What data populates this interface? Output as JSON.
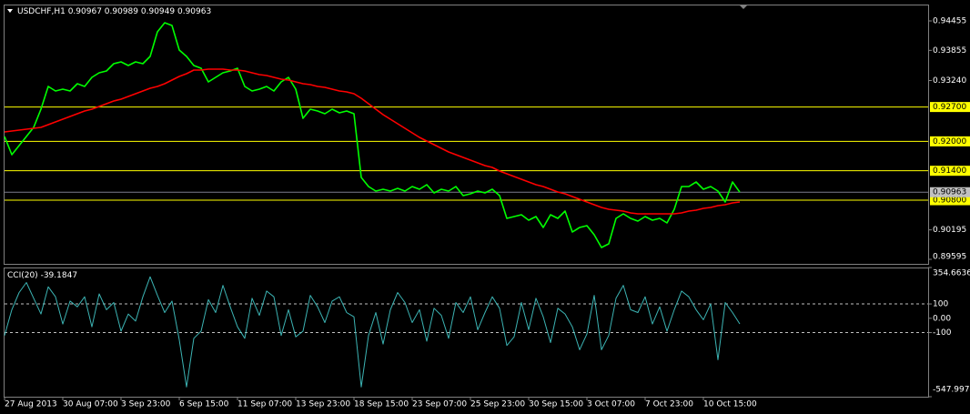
{
  "chart_data": [
    {
      "type": "line",
      "symbol": "USDCHF,H1",
      "ohlc": [
        0.90967,
        0.90989,
        0.90949,
        0.90963
      ],
      "ylim": [
        0.89502,
        0.94789
      ],
      "yticks": [
        0.94455,
        0.93855,
        {
          "value": 0.9324,
          "label": "0.93240"
        },
        0.90195,
        0.89595
      ],
      "levels": [
        {
          "value": 0.927,
          "label": "0.92700"
        },
        {
          "value": 0.92,
          "label": "0.92000"
        },
        {
          "value": 0.914,
          "label": "0.91400"
        },
        {
          "value": 0.908,
          "label": "0.90800"
        }
      ],
      "level_color": "#ffff00",
      "last_price": 0.90963,
      "series": [
        {
          "color": "#00ff00",
          "values": [
            0.92099,
            0.91728,
            0.91914,
            0.92099,
            0.92285,
            0.92656,
            0.93119,
            0.93027,
            0.93064,
            0.93027,
            0.93175,
            0.93119,
            0.93305,
            0.93398,
            0.93435,
            0.93583,
            0.9362,
            0.93546,
            0.9362,
            0.93583,
            0.93732,
            0.94232,
            0.94418,
            0.94362,
            0.93861,
            0.93732,
            0.93546,
            0.9349,
            0.93212,
            0.93305,
            0.93398,
            0.93435,
            0.9349,
            0.93119,
            0.93027,
            0.93064,
            0.93119,
            0.93027,
            0.93212,
            0.93305,
            0.93064,
            0.9247,
            0.92656,
            0.92619,
            0.92563,
            0.92656,
            0.92581,
            0.92619,
            0.92563,
            0.91264,
            0.91079,
            0.90986,
            0.91023,
            0.90986,
            0.91042,
            0.90986,
            0.91079,
            0.91023,
            0.91116,
            0.90949,
            0.91023,
            0.90986,
            0.91079,
            0.90893,
            0.9093,
            0.90986,
            0.90949,
            0.91023,
            0.90893,
            0.9043,
            0.90467,
            0.90504,
            0.90393,
            0.90467,
            0.90244,
            0.90504,
            0.9043,
            0.90578,
            0.90151,
            0.90244,
            0.90281,
            0.90096,
            0.89836,
            0.8991,
            0.9043,
            0.90522,
            0.9043,
            0.90374,
            0.90467,
            0.90393,
            0.9043,
            0.90337,
            0.90615,
            0.91079,
            0.91079,
            0.91172,
            0.91023,
            0.91079,
            0.90986,
            0.90764,
            0.91172,
            0.90963
          ]
        },
        {
          "color": "#ff0000",
          "values": [
            0.92192,
            0.9221,
            0.92229,
            0.92248,
            0.92266,
            0.92285,
            0.9234,
            0.92396,
            0.92452,
            0.92507,
            0.92563,
            0.92619,
            0.92656,
            0.92711,
            0.92767,
            0.92823,
            0.9286,
            0.92915,
            0.92971,
            0.93027,
            0.93082,
            0.93119,
            0.93175,
            0.93249,
            0.93323,
            0.93379,
            0.93453,
            0.93453,
            0.93472,
            0.93472,
            0.93472,
            0.93453,
            0.93453,
            0.93435,
            0.93398,
            0.93361,
            0.93342,
            0.93305,
            0.93268,
            0.93249,
            0.93212,
            0.93175,
            0.93156,
            0.93119,
            0.93101,
            0.93064,
            0.93027,
            0.93008,
            0.92971,
            0.92878,
            0.92767,
            0.92656,
            0.92544,
            0.92452,
            0.92359,
            0.92266,
            0.92173,
            0.92081,
            0.92006,
            0.91932,
            0.91858,
            0.91784,
            0.91728,
            0.91672,
            0.91617,
            0.91561,
            0.91506,
            0.91468,
            0.91394,
            0.91339,
            0.91283,
            0.91227,
            0.91172,
            0.91116,
            0.91079,
            0.91023,
            0.90968,
            0.9093,
            0.90875,
            0.90819,
            0.90764,
            0.90708,
            0.90652,
            0.90615,
            0.90597,
            0.90578,
            0.90541,
            0.90522,
            0.90522,
            0.90522,
            0.90522,
            0.90522,
            0.90522,
            0.90541,
            0.90578,
            0.90597,
            0.90634,
            0.90652,
            0.90689,
            0.90708,
            0.90745,
            0.90764
          ]
        }
      ]
    },
    {
      "type": "line",
      "indicator": "CCI(20)",
      "ylim": [
        -547.9974,
        354.6636
      ],
      "yticks": [
        354.6636,
        100,
        {
          "value": 0,
          "label": "0.00"
        },
        -100,
        -547.9974
      ],
      "categories": [
        "27 Aug 2013",
        null,
        null,
        null,
        null,
        null,
        null,
        null,
        "30 Aug 07:00",
        null,
        null,
        null,
        null,
        null,
        null,
        null,
        "3 Sep 23:00",
        null,
        null,
        null,
        null,
        null,
        null,
        null,
        "6 Sep 15:00",
        null,
        null,
        null,
        null,
        null,
        null,
        null,
        "11 Sep 07:00",
        null,
        null,
        null,
        null,
        null,
        null,
        null,
        "13 Sep 23:00",
        null,
        null,
        null,
        null,
        null,
        null,
        null,
        "18 Sep 15:00",
        null,
        null,
        null,
        null,
        null,
        null,
        null,
        "23 Sep 07:00",
        null,
        null,
        null,
        null,
        null,
        null,
        null,
        "25 Sep 23:00",
        null,
        null,
        null,
        null,
        null,
        null,
        null,
        "30 Sep 15:00",
        null,
        null,
        null,
        null,
        null,
        null,
        null,
        "3 Oct 07:00",
        null,
        null,
        null,
        null,
        null,
        null,
        null,
        "7 Oct 23:00",
        null,
        null,
        null,
        null,
        null,
        null,
        null,
        "10 Oct 15:00",
        null,
        null,
        null,
        null,
        null
      ],
      "series": [
        {
          "color": "#3cb4b4",
          "values": [
            -120,
            60,
            180,
            250,
            140,
            30,
            220,
            150,
            -40,
            120,
            80,
            150,
            -60,
            170,
            60,
            110,
            -90,
            30,
            -20,
            150,
            290,
            160,
            40,
            120,
            -150,
            -480,
            -140,
            -90,
            130,
            40,
            230,
            80,
            -60,
            -140,
            140,
            20,
            190,
            150,
            -120,
            60,
            -130,
            -90,
            160,
            80,
            -30,
            120,
            150,
            40,
            10,
            -480,
            -120,
            40,
            -180,
            60,
            180,
            110,
            -30,
            60,
            -160,
            70,
            20,
            -140,
            110,
            40,
            150,
            -80,
            40,
            150,
            70,
            -190,
            -130,
            110,
            -80,
            140,
            10,
            -170,
            70,
            30,
            -60,
            -220,
            -110,
            160,
            -220,
            -120,
            140,
            230,
            60,
            40,
            150,
            -40,
            80,
            -90,
            60,
            190,
            150,
            60,
            -10,
            100,
            -290,
            110,
            40,
            -39.1847
          ]
        }
      ]
    }
  ]
}
